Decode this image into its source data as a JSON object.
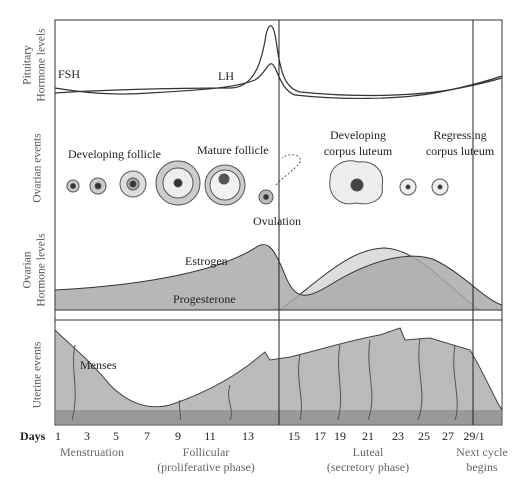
{
  "rows": [
    {
      "label": [
        "Pituitary",
        "Hormone levels"
      ]
    },
    {
      "label": [
        "Ovarian events"
      ]
    },
    {
      "label": [
        "Ovarian",
        "Hormone levels"
      ]
    },
    {
      "label": [
        "Uterine events"
      ]
    }
  ],
  "pituitary": {
    "fsh": "FSH",
    "lh": "LH"
  },
  "ovarian_events": {
    "developing_follicle": "Developing follicle",
    "mature_follicle": "Mature follicle",
    "ovulation": "Ovulation",
    "developing_corpus_luteum": [
      "Developing",
      "corpus luteum"
    ],
    "regressing_corpus_luteum": [
      "Regressing",
      "corpus luteum"
    ]
  },
  "ovarian_hormones": {
    "estrogen": "Estrogen",
    "progesterone": "Progesterone"
  },
  "uterine": {
    "menses": "Menses"
  },
  "days": {
    "title": "Days",
    "ticks": [
      "1",
      "3",
      "5",
      "7",
      "9",
      "11",
      "13",
      "15",
      "17",
      "19",
      "21",
      "23",
      "25",
      "27",
      "29/1"
    ]
  },
  "phases": [
    {
      "lines": [
        "Menstruation"
      ]
    },
    {
      "lines": [
        "Follicular",
        "(proliferative phase)"
      ]
    },
    {
      "lines": [
        "Luteal",
        "(secretory phase)"
      ]
    },
    {
      "lines": [
        "Next cycle",
        "begins"
      ]
    }
  ]
}
